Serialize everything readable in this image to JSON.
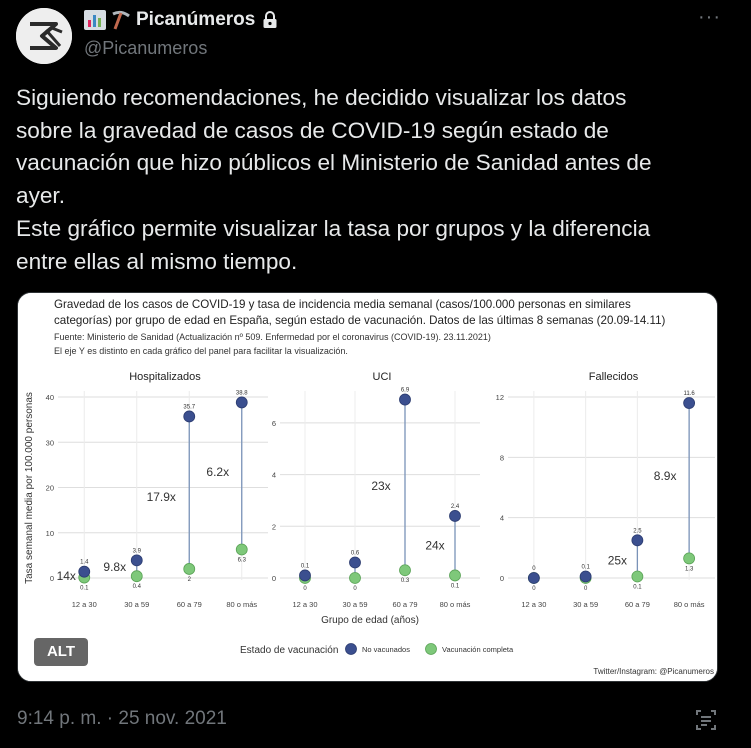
{
  "account": {
    "display_name": "Picanúmeros",
    "handle": "@Picanumeros",
    "emoji_names": [
      "bar-chart-icon",
      "pick-icon"
    ],
    "locked": true
  },
  "tweet": {
    "lines": [
      "Siguiendo recomendaciones, he decidido visualizar los datos",
      "sobre la gravedad de casos de COVID-19 según estado de",
      "vacunación que hizo públicos el Ministerio de Sanidad antes de",
      "ayer.",
      "Este gráfico permite visualizar la tasa por grupos y la diferencia",
      "entre ellas al mismo tiempo."
    ],
    "timestamp": "9:14 p. m. · 25 nov. 2021"
  },
  "media": {
    "alt_label": "ALT",
    "title_line1": "Gravedad de los casos de COVID-19 y tasa de incidencia media semanal (casos/100.000 personas en similares",
    "title_line2": "categorías) por grupo de edad en España, según estado de vacunación. Datos de las últimas 8 semanas (20.09-14.11)",
    "source_line1": "Fuente: Ministerio de Sanidad (Actualización nº 509. Enfermedad por el coronavirus (COVID-19). 23.11.2021)",
    "source_line2": "El eje Y es distinto en cada gráfico del panel para facilitar la visualización.",
    "y_axis_label": "Tasa semanal media por 100.000 personas",
    "x_axis_label": "Grupo de edad (años)",
    "legend_title": "Estado de vacunación",
    "credit": "Twitter/Instagram: @Picanumeros"
  },
  "colors": {
    "unvaccinated": "#3b4f8f",
    "vaccinated": "#7ec87a",
    "segment": "#7a93b8"
  },
  "chart_data": {
    "type": "scatter",
    "categories": [
      "12 a 30",
      "30 a 59",
      "60 a 79",
      "80 o más"
    ],
    "series_names": [
      "No vacunados",
      "Vacunación completa"
    ],
    "panels": [
      {
        "title": "Hospitalizados",
        "ylim": [
          0,
          40
        ],
        "yticks": [
          0,
          10,
          20,
          30,
          40
        ],
        "unvaccinated": [
          1.4,
          3.9,
          35.7,
          38.8
        ],
        "vaccinated": [
          0.1,
          0.4,
          2,
          6.3
        ],
        "unvaccinated_labels": [
          "1.4",
          "3.9",
          "35.7",
          "38.8"
        ],
        "vaccinated_labels": [
          "0.1",
          "0.4",
          "2",
          "6.3"
        ],
        "ratios": [
          "14x",
          "9.8x",
          "17.9x",
          "6.2x"
        ]
      },
      {
        "title": "UCI",
        "ylim": [
          0,
          7
        ],
        "yticks": [
          0,
          2,
          4,
          6
        ],
        "unvaccinated": [
          0.1,
          0.6,
          6.9,
          2.4
        ],
        "vaccinated": [
          0,
          0,
          0.3,
          0.1
        ],
        "unvaccinated_labels": [
          "0.1",
          "0.6",
          "6.9",
          "2.4"
        ],
        "vaccinated_labels": [
          "0",
          "0",
          "0.3",
          "0.1"
        ],
        "ratios": [
          "",
          "",
          "23x",
          "24x"
        ]
      },
      {
        "title": "Fallecidos",
        "ylim": [
          0,
          12
        ],
        "yticks": [
          0,
          4,
          8,
          12
        ],
        "unvaccinated": [
          0,
          0.1,
          2.5,
          11.6
        ],
        "vaccinated": [
          0,
          0,
          0.1,
          1.3
        ],
        "unvaccinated_labels": [
          "0",
          "0.1",
          "2.5",
          "11.6"
        ],
        "vaccinated_labels": [
          "0",
          "0",
          "0.1",
          "1.3"
        ],
        "ratios": [
          "",
          "",
          "25x",
          "8.9x"
        ]
      }
    ]
  }
}
